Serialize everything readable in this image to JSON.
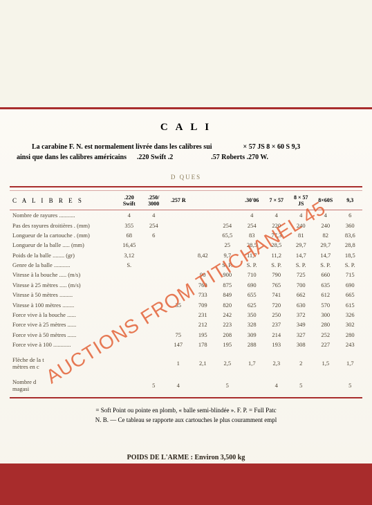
{
  "watermark": "AUCTIONS FROM TITICHANEL 45",
  "title_partial": "C A L I",
  "intro_line1_a": "La carabine F. N. est normalement livrée dans les calibres sui",
  "intro_line1_b": "× 57 JS  8 × 60 S  9,3",
  "intro_line2_a": "ainsi que dans les calibres américains",
  "intro_line2_b": ".220 Swift     .2",
  "intro_line2_c": ".57 Roberts     .270 W.",
  "subheading": "D                        QUES",
  "columns_label": "C A L I B R E S",
  "columns": [
    ".220\nSwift",
    ".250/\n3000",
    ".257 R",
    "",
    "",
    ".30'06",
    "7 × 57",
    "8 × 57\nJS",
    "8×60S",
    "9,3"
  ],
  "rows": [
    {
      "label": "Nombre de rayures",
      "unit": "",
      "vals": [
        "4",
        "4",
        "",
        "",
        "",
        "4",
        "4",
        "4",
        "4",
        "6"
      ]
    },
    {
      "label": "Pas des rayures droitières",
      "unit": "(mm)",
      "vals": [
        "355",
        "254",
        "",
        "",
        "254",
        "254",
        "220",
        "240",
        "240",
        "360"
      ]
    },
    {
      "label": "Longueur de la cartouche",
      "unit": "(mm)",
      "vals": [
        "68",
        "6",
        "",
        "",
        "65,5",
        "83",
        "77,3",
        "81",
        "82",
        "83,6"
      ]
    },
    {
      "label": "Longueur de la balle",
      "unit": "(mm)",
      "vals": [
        "16,45",
        "",
        "",
        "",
        "25",
        "28,5",
        "28,5",
        "29,7",
        "29,7",
        "28,8"
      ]
    },
    {
      "label": "Poids de la balle",
      "unit": "(gr)",
      "vals": [
        "3,12",
        "",
        "",
        "8,42",
        "9,7",
        "11,7",
        "11,2",
        "14,7",
        "14,7",
        "18,5"
      ]
    },
    {
      "label": "Genre de la balle",
      "unit": "",
      "vals": [
        "S.",
        "",
        "",
        "",
        "S. P.",
        "S. P.",
        "S. P.",
        "S. P.",
        "S. P.",
        "S. P."
      ]
    },
    {
      "label": "Vitesse à la bouche",
      "unit": "(m/s)",
      "vals": [
        "",
        "",
        "",
        "90",
        "900",
        "710",
        "790",
        "725",
        "660",
        "715",
        "675"
      ]
    },
    {
      "label": "Vitesse à 25 mètres",
      "unit": "(m/s)",
      "vals": [
        "",
        "",
        "",
        "760",
        "875",
        "690",
        "765",
        "700",
        "635",
        "690",
        "650"
      ]
    },
    {
      "label": "Vitesse à 50 mètres",
      "unit": "",
      "vals": [
        "",
        "",
        "",
        "733",
        "849",
        "655",
        "741",
        "662",
        "612",
        "665",
        "627"
      ]
    },
    {
      "label": "Vitesse à 100 mètres",
      "unit": "",
      "vals": [
        "",
        "",
        "35",
        "709",
        "820",
        "625",
        "720",
        "630",
        "570",
        "615",
        "580"
      ]
    },
    {
      "label": "Force vive à la bouche",
      "unit": "",
      "vals": [
        "",
        "",
        "",
        "231",
        "242",
        "350",
        "250",
        "372",
        "300",
        "326",
        "383",
        "430"
      ]
    },
    {
      "label": "Force vive à 25 mètres",
      "unit": "",
      "vals": [
        "",
        "",
        "",
        "212",
        "223",
        "328",
        "237",
        "349",
        "280",
        "302",
        "357",
        "400"
      ]
    },
    {
      "label": "Force vive à 50 mètres",
      "unit": "",
      "vals": [
        "",
        "",
        "75",
        "195",
        "208",
        "309",
        "214",
        "327",
        "252",
        "280",
        "332",
        "371"
      ]
    },
    {
      "label": "Force vive à 100",
      "unit": "",
      "vals": [
        "",
        "",
        "147",
        "178",
        "195",
        "288",
        "193",
        "308",
        "227",
        "243",
        "283",
        "317"
      ]
    },
    {
      "label_a": "Flèche de la t",
      "label_b": "mètres en c",
      "vals": [
        "",
        "",
        "1",
        "2,1",
        "2,5",
        "1,7",
        "2,3",
        "2",
        "1,5",
        "1,7",
        "1,7",
        "1,8"
      ],
      "sep": true
    },
    {
      "label_a": "Nombre d",
      "label_b": "magasi",
      "vals": [
        "",
        "5",
        "4",
        "",
        "5",
        "",
        "4",
        "5",
        "",
        "5",
        "4",
        ""
      ],
      "sep": true
    }
  ],
  "footnote_a": "= Soft Point ou pointe en plomb, « balle semi-blindée ».        F. P. = Full Patc",
  "footnote_b": "N. B. — Ce tableau se rapporte aux cartouches le plus couramment empl",
  "weight": "POIDS DE L'ARME : Environ 3,500 kg"
}
